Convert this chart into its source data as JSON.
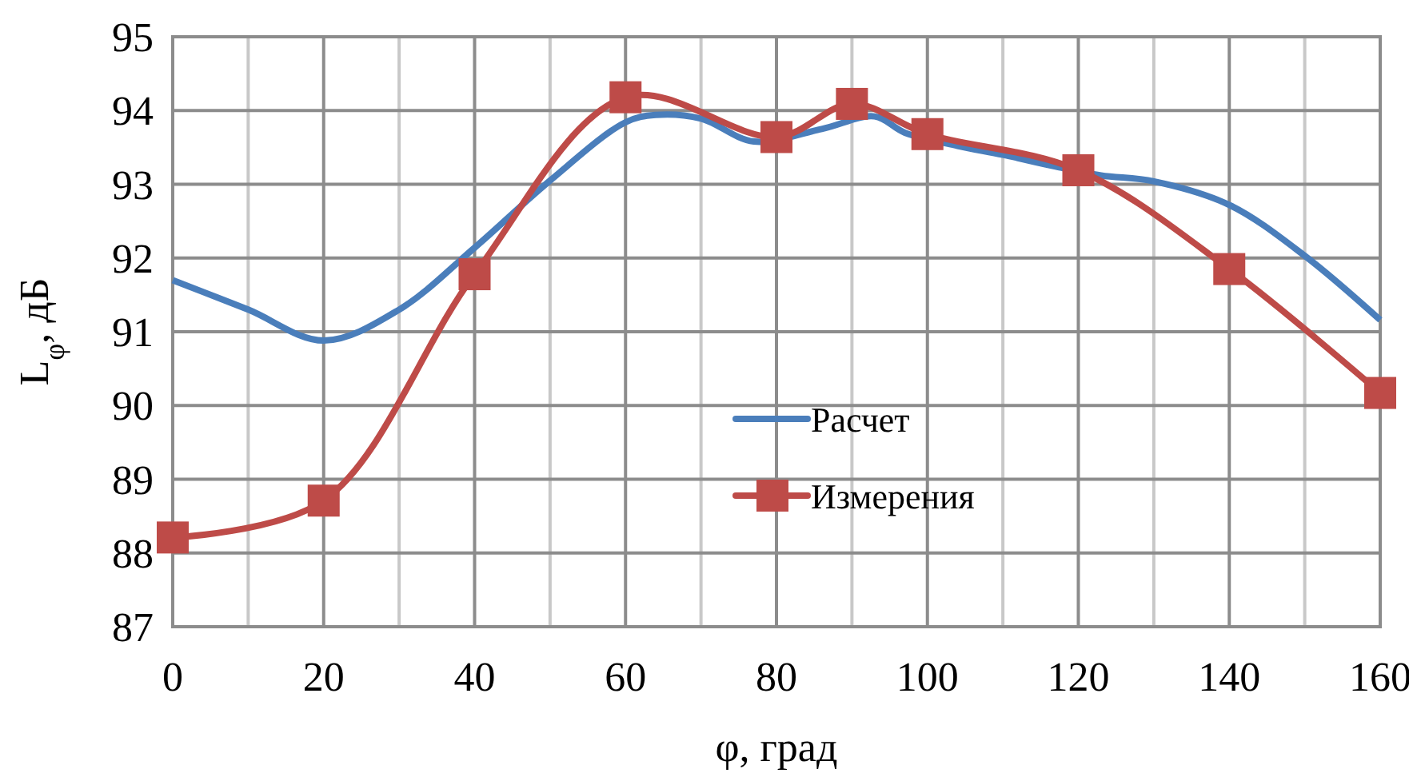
{
  "chart_data": {
    "type": "line",
    "xlabel": "φ, град",
    "ylabel": "L$_{φ}$, дБ",
    "xlim": [
      0,
      160
    ],
    "xticks": [
      0,
      {
        "value": 10,
        "label": null
      },
      20,
      {
        "value": 30,
        "label": null
      },
      40,
      {
        "value": 50,
        "label": null
      },
      60,
      {
        "value": 70,
        "label": null
      },
      80,
      {
        "value": 90,
        "label": null
      },
      100,
      {
        "value": 110,
        "label": null
      },
      120,
      {
        "value": 130,
        "label": null
      },
      140,
      {
        "value": 150,
        "label": null
      },
      160
    ],
    "ylim": [
      87,
      95
    ],
    "yticks": [
      87,
      88,
      89,
      90,
      91,
      92,
      93,
      94,
      95
    ],
    "grid": true,
    "legend": "right",
    "series": [
      {
        "name": "Расчет",
        "color": "#4a7ebb",
        "marker": "none",
        "x": [
          0,
          10,
          20,
          30,
          40,
          50,
          60,
          64,
          70,
          77,
          86,
          93,
          97,
          104,
          110,
          117,
          123,
          130,
          140,
          150,
          160
        ],
        "values": [
          91.7,
          91.3,
          90.88,
          91.3,
          92.14,
          93.05,
          93.84,
          93.94,
          93.89,
          93.58,
          93.75,
          93.92,
          93.7,
          93.52,
          93.4,
          93.24,
          93.12,
          93.04,
          92.72,
          92.03,
          91.16
        ]
      },
      {
        "name": "Измерения",
        "color": "#be4b48",
        "marker": "square",
        "x": [
          0,
          20,
          40,
          60,
          80,
          90,
          100,
          120,
          140,
          160
        ],
        "values": [
          88.21,
          88.71,
          91.78,
          94.18,
          93.64,
          94.09,
          93.68,
          93.19,
          91.85,
          90.17
        ]
      }
    ]
  }
}
